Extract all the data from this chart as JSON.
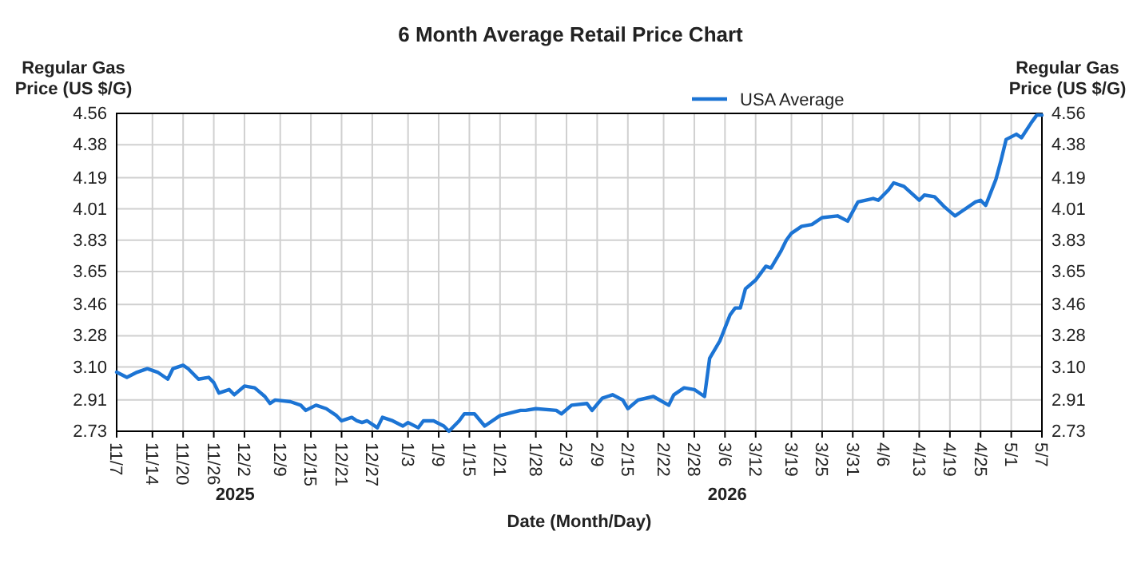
{
  "chart_data": {
    "type": "line",
    "title": "6 Month Average Retail Price Chart",
    "xlabel": "Date (Month/Day)",
    "ylabel": "Regular Gas\nPrice (US $/G)",
    "y2label": "Regular Gas\nPrice (US $/G)",
    "x": [
      "2025-11-07",
      "2025-11-09",
      "2025-11-11",
      "2025-11-13",
      "2025-11-15",
      "2025-11-17",
      "2025-11-18",
      "2025-11-20",
      "2025-11-21",
      "2025-11-23",
      "2025-11-25",
      "2025-11-26",
      "2025-11-27",
      "2025-11-29",
      "2025-11-30",
      "2025-12-02",
      "2025-12-04",
      "2025-12-06",
      "2025-12-07",
      "2025-12-08",
      "2025-12-11",
      "2025-12-13",
      "2025-12-14",
      "2025-12-16",
      "2025-12-18",
      "2025-12-20",
      "2025-12-21",
      "2025-12-23",
      "2025-12-24",
      "2025-12-25",
      "2025-12-26",
      "2025-12-28",
      "2025-12-29",
      "2025-12-31",
      "2026-01-02",
      "2026-01-03",
      "2026-01-05",
      "2026-01-06",
      "2026-01-08",
      "2026-01-10",
      "2026-01-11",
      "2026-01-13",
      "2026-01-14",
      "2026-01-16",
      "2026-01-18",
      "2026-01-21",
      "2026-01-25",
      "2026-01-26",
      "2026-01-28",
      "2026-02-01",
      "2026-02-02",
      "2026-02-04",
      "2026-02-07",
      "2026-02-08",
      "2026-02-10",
      "2026-02-12",
      "2026-02-14",
      "2026-02-15",
      "2026-02-17",
      "2026-02-20",
      "2026-02-23",
      "2026-02-24",
      "2026-02-26",
      "2026-02-28",
      "2026-03-02",
      "2026-03-03",
      "2026-03-05",
      "2026-03-07",
      "2026-03-08",
      "2026-03-09",
      "2026-03-10",
      "2026-03-12",
      "2026-03-13",
      "2026-03-14",
      "2026-03-15",
      "2026-03-17",
      "2026-03-18",
      "2026-03-19",
      "2026-03-21",
      "2026-03-23",
      "2026-03-25",
      "2026-03-28",
      "2026-03-30",
      "2026-04-01",
      "2026-04-04",
      "2026-04-05",
      "2026-04-07",
      "2026-04-08",
      "2026-04-10",
      "2026-04-13",
      "2026-04-14",
      "2026-04-16",
      "2026-04-18",
      "2026-04-20",
      "2026-04-21",
      "2026-04-24",
      "2026-04-25",
      "2026-04-26",
      "2026-04-28",
      "2026-04-29",
      "2026-04-30",
      "2026-05-02",
      "2026-05-03",
      "2026-05-05",
      "2026-05-06",
      "2026-05-07"
    ],
    "series": [
      {
        "name": "USA Average",
        "color": "#1c74d4",
        "values": [
          3.07,
          3.04,
          3.07,
          3.09,
          3.07,
          3.03,
          3.09,
          3.11,
          3.09,
          3.03,
          3.04,
          3.01,
          2.95,
          2.97,
          2.94,
          2.99,
          2.98,
          2.93,
          2.89,
          2.91,
          2.9,
          2.88,
          2.85,
          2.88,
          2.86,
          2.82,
          2.79,
          2.81,
          2.79,
          2.78,
          2.79,
          2.75,
          2.81,
          2.79,
          2.76,
          2.78,
          2.75,
          2.79,
          2.79,
          2.76,
          2.73,
          2.79,
          2.83,
          2.83,
          2.76,
          2.82,
          2.85,
          2.85,
          2.86,
          2.85,
          2.83,
          2.88,
          2.89,
          2.85,
          2.92,
          2.94,
          2.91,
          2.86,
          2.91,
          2.93,
          2.88,
          2.94,
          2.98,
          2.97,
          2.93,
          3.15,
          3.25,
          3.4,
          3.44,
          3.44,
          3.55,
          3.6,
          3.64,
          3.68,
          3.67,
          3.77,
          3.83,
          3.87,
          3.91,
          3.92,
          3.96,
          3.97,
          3.94,
          4.05,
          4.07,
          4.06,
          4.12,
          4.16,
          4.14,
          4.06,
          4.09,
          4.08,
          4.02,
          3.97,
          3.99,
          4.05,
          4.06,
          4.03,
          4.18,
          4.29,
          4.41,
          4.44,
          4.42,
          4.51,
          4.55,
          4.55
        ]
      }
    ],
    "xlim": [
      "2025-11-07",
      "2026-05-07"
    ],
    "xticks": [
      {
        "value": "2025-11-07",
        "label": "11/7"
      },
      {
        "value": "2025-11-14",
        "label": "11/14"
      },
      {
        "value": "2025-11-20",
        "label": "11/20"
      },
      {
        "value": "2025-11-26",
        "label": "11/26"
      },
      {
        "value": "2025-12-02",
        "label": "12/2"
      },
      {
        "value": "2025-12-09",
        "label": "12/9"
      },
      {
        "value": "2025-12-15",
        "label": "12/15"
      },
      {
        "value": "2025-12-21",
        "label": "12/21"
      },
      {
        "value": "2025-12-27",
        "label": "12/27"
      },
      {
        "value": "2026-01-03",
        "label": "1/3"
      },
      {
        "value": "2026-01-09",
        "label": "1/9"
      },
      {
        "value": "2026-01-15",
        "label": "1/15"
      },
      {
        "value": "2026-01-21",
        "label": "1/21"
      },
      {
        "value": "2026-01-28",
        "label": "1/28"
      },
      {
        "value": "2026-02-03",
        "label": "2/3"
      },
      {
        "value": "2026-02-09",
        "label": "2/9"
      },
      {
        "value": "2026-02-15",
        "label": "2/15"
      },
      {
        "value": "2026-02-22",
        "label": "2/22"
      },
      {
        "value": "2026-02-28",
        "label": "2/28"
      },
      {
        "value": "2026-03-06",
        "label": "3/6"
      },
      {
        "value": "2026-03-12",
        "label": "3/12"
      },
      {
        "value": "2026-03-19",
        "label": "3/19"
      },
      {
        "value": "2026-03-25",
        "label": "3/25"
      },
      {
        "value": "2026-03-31",
        "label": "3/31"
      },
      {
        "value": "2026-04-06",
        "label": "4/6"
      },
      {
        "value": "2026-04-13",
        "label": "4/13"
      },
      {
        "value": "2026-04-19",
        "label": "4/19"
      },
      {
        "value": "2026-04-25",
        "label": "4/25"
      },
      {
        "value": "2026-05-01",
        "label": "5/1"
      },
      {
        "value": "2026-05-07",
        "label": "5/7"
      }
    ],
    "ylim": [
      2.73,
      4.56
    ],
    "yticks": [
      2.73,
      2.91,
      {
        "value": 3.1,
        "label": "3.10"
      },
      3.28,
      3.46,
      3.65,
      3.83,
      4.01,
      4.19,
      4.38,
      4.56
    ],
    "y2lim": [
      2.73,
      4.56
    ],
    "y2ticks": [
      2.73,
      2.91,
      {
        "value": 3.1,
        "label": "3.10"
      },
      3.28,
      3.46,
      3.65,
      3.83,
      4.01,
      4.19,
      4.38,
      4.56
    ],
    "annotations": [
      "2025",
      "2026"
    ],
    "grid": true,
    "legend": "top right",
    "marker": "none",
    "line_style": "solid"
  }
}
